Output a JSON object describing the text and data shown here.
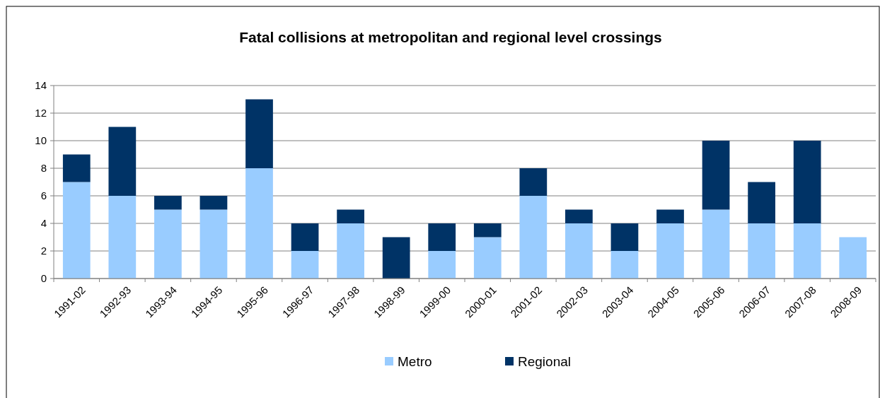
{
  "chart_data": {
    "type": "bar",
    "title": "Fatal collisions at metropolitan and regional level crossings",
    "categories": [
      "1991-02",
      "1992-93",
      "1993-94",
      "1994-95",
      "1995-96",
      "1996-97",
      "1997-98",
      "1998-99",
      "1999-00",
      "2000-01",
      "2001-02",
      "2002-03",
      "2003-04",
      "2004-05",
      "2005-06",
      "2006-07",
      "2007-08",
      "2008-09"
    ],
    "series": [
      {
        "name": "Metro",
        "color": "#99ccff",
        "values": [
          7,
          6,
          5,
          5,
          8,
          2,
          4,
          0,
          2,
          3,
          6,
          4,
          2,
          4,
          5,
          4,
          4,
          3
        ]
      },
      {
        "name": "Regional",
        "color": "#003366",
        "values": [
          2,
          5,
          1,
          1,
          5,
          2,
          1,
          3,
          2,
          1,
          2,
          1,
          2,
          1,
          5,
          3,
          6,
          0
        ]
      }
    ],
    "stacked": true,
    "ylim": [
      0,
      14
    ],
    "yticks": [
      0,
      2,
      4,
      6,
      8,
      10,
      12,
      14
    ],
    "grid": "y",
    "legend": "bottom"
  }
}
